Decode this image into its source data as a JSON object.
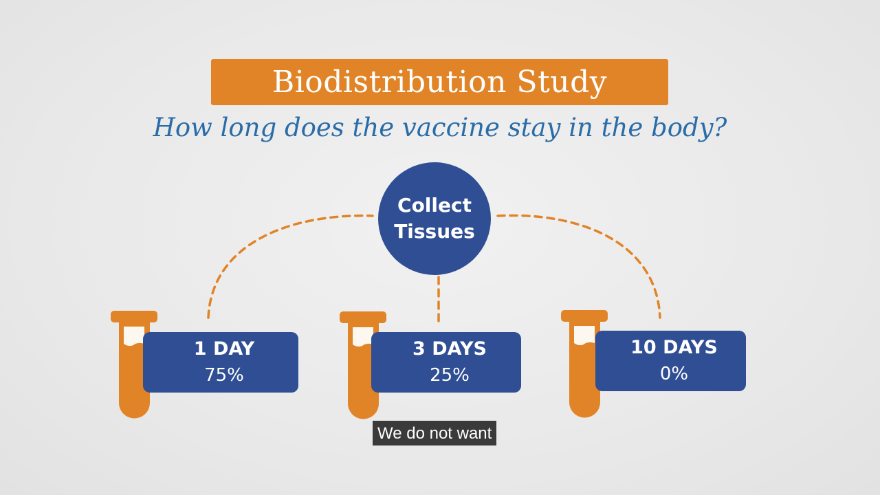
{
  "title": "Biodistribution Study",
  "subtitle": "How long does the vaccine stay in the body?",
  "center_node": {
    "line1": "Collect",
    "line2": "Tissues"
  },
  "samples": [
    {
      "duration": "1 DAY",
      "percent": "75%"
    },
    {
      "duration": "3 DAYS",
      "percent": "25%"
    },
    {
      "duration": "10 DAYS",
      "percent": "0%"
    }
  ],
  "caption": "We do not want",
  "colors": {
    "orange": "#e18427",
    "navy": "#2f4e93",
    "subtitle_blue": "#2a6ca8",
    "tube_cream": "#fdf8ef"
  },
  "icons": {
    "tube": "test-tube-icon"
  }
}
